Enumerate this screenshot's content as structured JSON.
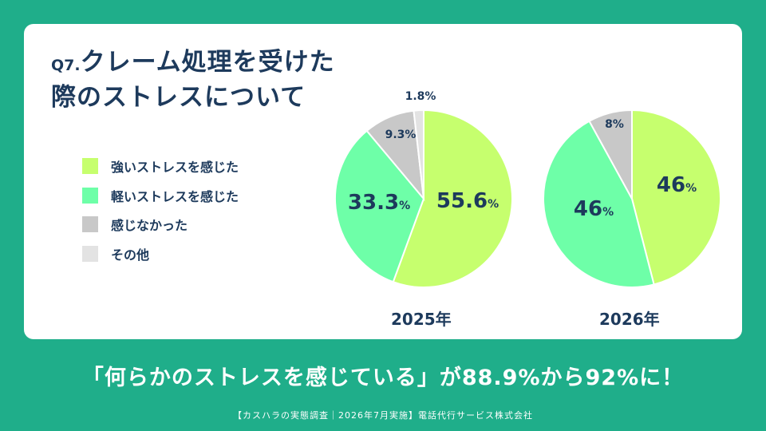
{
  "title": {
    "prefix": "Q7.",
    "line1": "クレーム処理を受けた",
    "line2": "際のストレスについて"
  },
  "legend": [
    {
      "label": "強いストレスを感じた",
      "color": "#c6ff6e"
    },
    {
      "label": "軽いストレスを感じた",
      "color": "#6effa8"
    },
    {
      "label": "感じなかった",
      "color": "#c8c8c8"
    },
    {
      "label": "その他",
      "color": "#e3e3e3"
    }
  ],
  "chart_data": [
    {
      "type": "pie",
      "title": "2025年",
      "categories": [
        "強いストレスを感じた",
        "軽いストレスを感じた",
        "感じなかった",
        "その他"
      ],
      "values": [
        55.6,
        33.3,
        9.3,
        1.8
      ],
      "labels": [
        "55.6",
        "33.3",
        "9.3%",
        "1.8%"
      ]
    },
    {
      "type": "pie",
      "title": "2026年",
      "categories": [
        "強いストレスを感じた",
        "軽いストレスを感じた",
        "感じなかった",
        "その他"
      ],
      "values": [
        46,
        46,
        8,
        0
      ],
      "labels": [
        "46",
        "46",
        "8%",
        ""
      ]
    }
  ],
  "percent_sign": "%",
  "headline": "「何らかのストレスを感じている」が88.9%から92%に！",
  "footer": "【カスハラの実態調査｜2026年7月実施】電話代行サービス株式会社"
}
